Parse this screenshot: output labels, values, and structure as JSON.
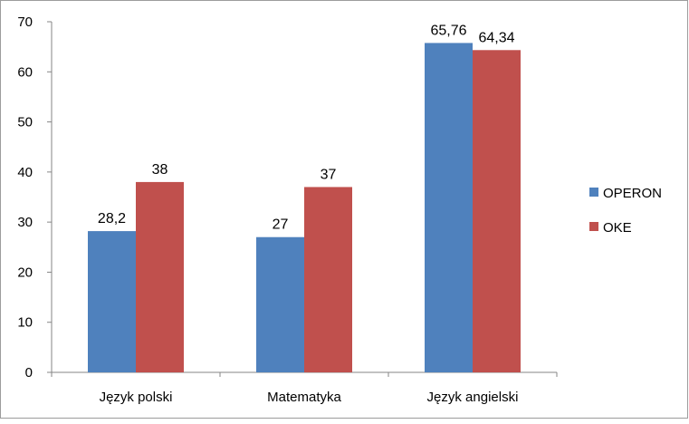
{
  "chart_data": {
    "type": "bar",
    "categories": [
      "Język polski",
      "Matematyka",
      "Język angielski"
    ],
    "series": [
      {
        "name": "OPERON",
        "values": [
          28.2,
          27,
          65.76
        ],
        "labels": [
          "28,2",
          "27",
          "65,76"
        ],
        "color": "#4F81BD"
      },
      {
        "name": "OKE",
        "values": [
          38,
          37,
          64.34
        ],
        "labels": [
          "38",
          "37",
          "64,34"
        ],
        "color": "#C0504D"
      }
    ],
    "yticks": [
      "0",
      "10",
      "20",
      "30",
      "40",
      "50",
      "60",
      "70"
    ],
    "ylim": [
      0,
      70
    ],
    "grid": false,
    "legend": "right"
  }
}
